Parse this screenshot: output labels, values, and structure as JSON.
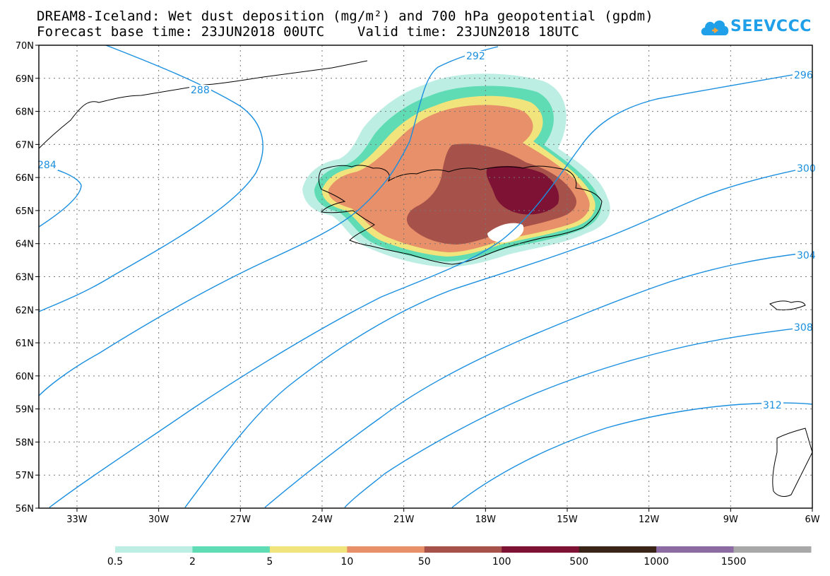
{
  "title": {
    "line1": "DREAM8-Iceland: Wet dust deposition (mg/m²) and 700 hPa geopotential (gpdm)",
    "line2": "Forecast base time: 23JUN2018 00UTC    Valid time: 23JUN2018 18UTC"
  },
  "logo": {
    "text": "SEEVCCC",
    "icon": "cloud-icon",
    "color": "#1fa0e8"
  },
  "axes": {
    "lat_labels": [
      "70N",
      "69N",
      "68N",
      "67N",
      "66N",
      "65N",
      "64N",
      "63N",
      "62N",
      "61N",
      "60N",
      "59N",
      "58N",
      "57N",
      "56N"
    ],
    "lon_labels": [
      "33W",
      "30W",
      "27W",
      "24W",
      "21W",
      "18W",
      "15W",
      "12W",
      "9W",
      "6W"
    ],
    "lat_range": [
      56,
      70
    ],
    "lon_range": [
      -34.4,
      -6
    ]
  },
  "contours": {
    "color": "#1a8fe0",
    "labels": [
      "284",
      "288",
      "292",
      "296",
      "300",
      "304",
      "308",
      "312"
    ]
  },
  "colorbar": {
    "colors": [
      "#bdeee4",
      "#5fdcb4",
      "#f2e47c",
      "#e8906a",
      "#a6524a",
      "#7e1235",
      "#3a2418",
      "#8c6aa2",
      "#a8a8a8"
    ],
    "labels": [
      "0.5",
      "2",
      "5",
      "10",
      "50",
      "100",
      "500",
      "1000",
      "1500"
    ]
  }
}
